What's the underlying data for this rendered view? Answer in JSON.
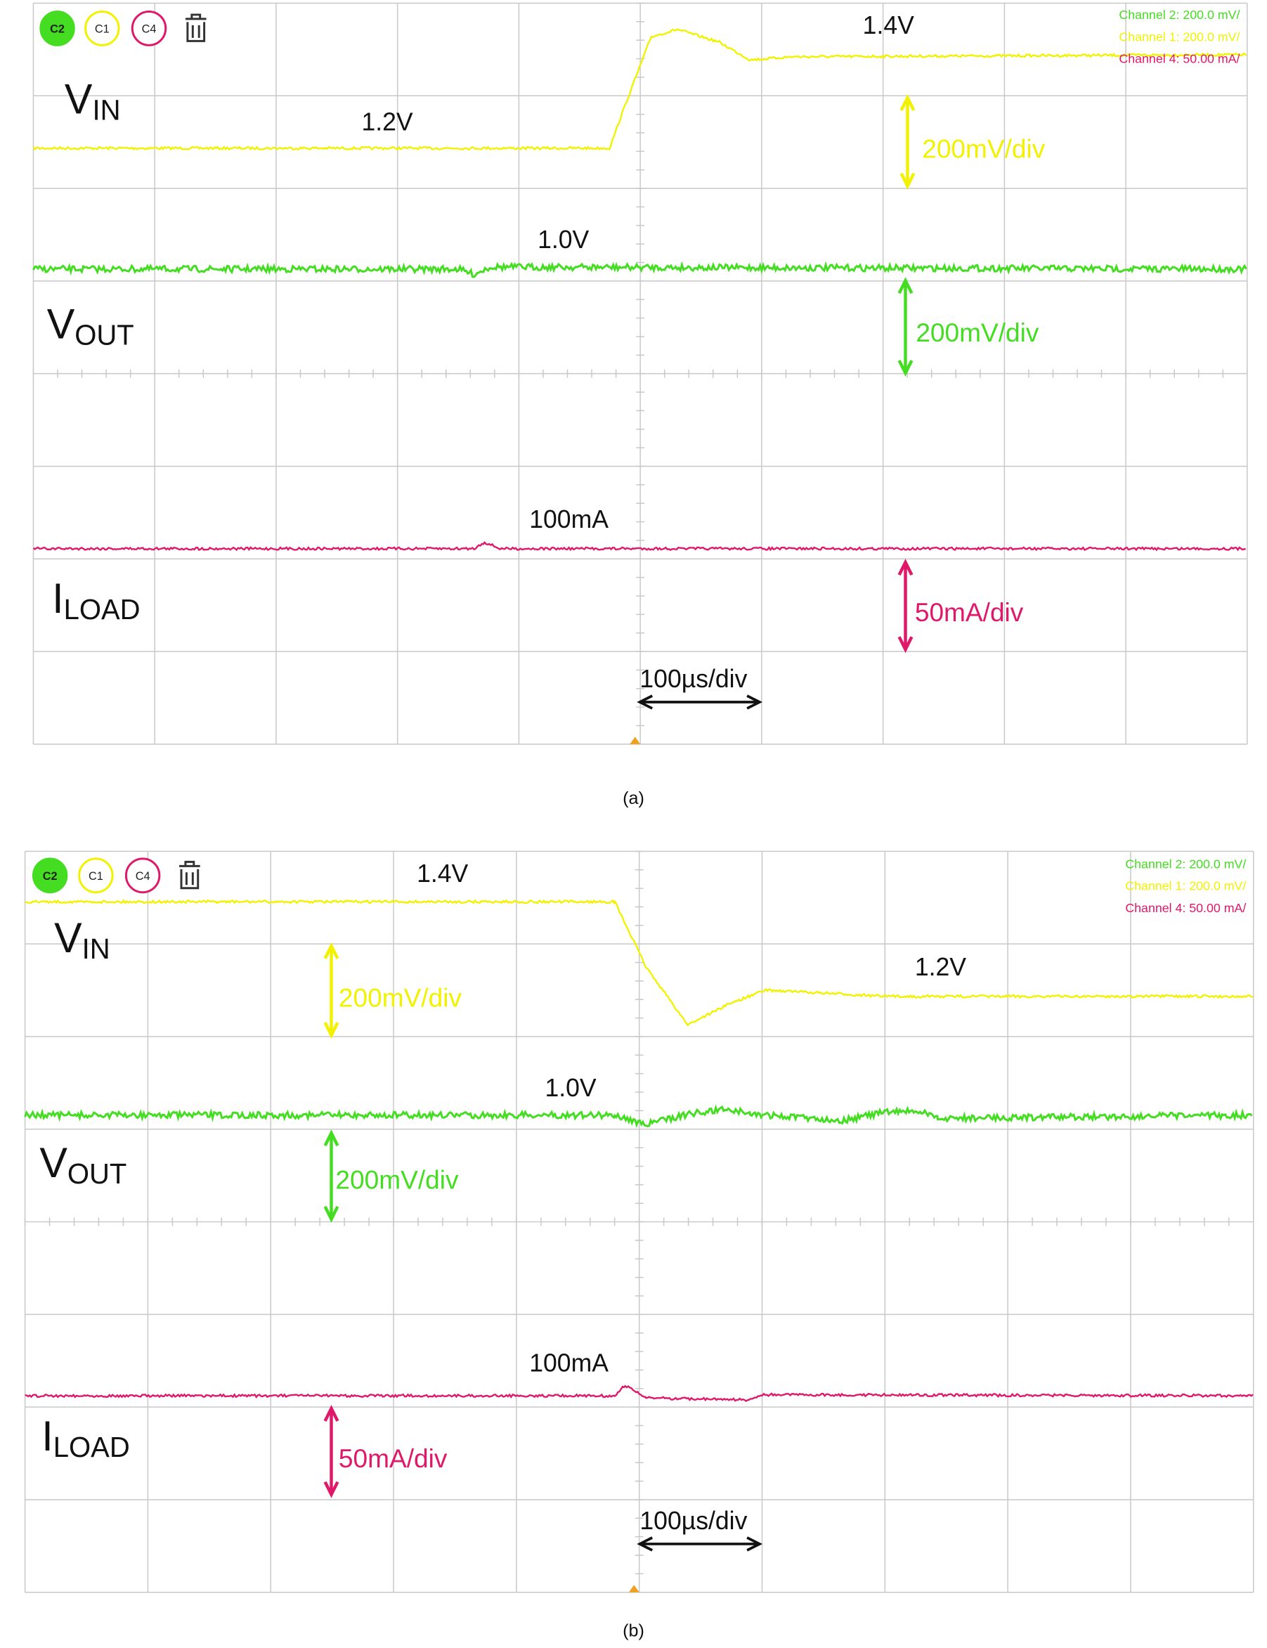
{
  "panels": [
    {
      "caption": "(a)",
      "toolbar": [
        "C2",
        "C1",
        "C4"
      ],
      "channel_info": [
        "Channel 2:  200.0 mV/",
        "Channel 1:  200.0 mV/",
        "Channel 4:  50.00 mA/"
      ],
      "signals": [
        {
          "main": "V",
          "sub": "IN"
        },
        {
          "main": "V",
          "sub": "OUT"
        },
        {
          "main": "I",
          "sub": "LOAD"
        }
      ],
      "levels": [
        "1.4V",
        "1.2V",
        "1.0V",
        "100mA"
      ],
      "scales": [
        "200mV/div",
        "200mV/div",
        "50mA/div"
      ],
      "timebase": "100µs/div"
    },
    {
      "caption": "(b)",
      "toolbar": [
        "C2",
        "C1",
        "C4"
      ],
      "channel_info": [
        "Channel 2:  200.0 mV/",
        "Channel 1:  200.0 mV/",
        "Channel 4:  50.00 mA/"
      ],
      "signals": [
        {
          "main": "V",
          "sub": "IN"
        },
        {
          "main": "V",
          "sub": "OUT"
        },
        {
          "main": "I",
          "sub": "LOAD"
        }
      ],
      "levels": [
        "1.4V",
        "1.2V",
        "1.0V",
        "100mA"
      ],
      "scales": [
        "200mV/div",
        "200mV/div",
        "50mA/div"
      ],
      "timebase": "100µs/div"
    }
  ]
}
